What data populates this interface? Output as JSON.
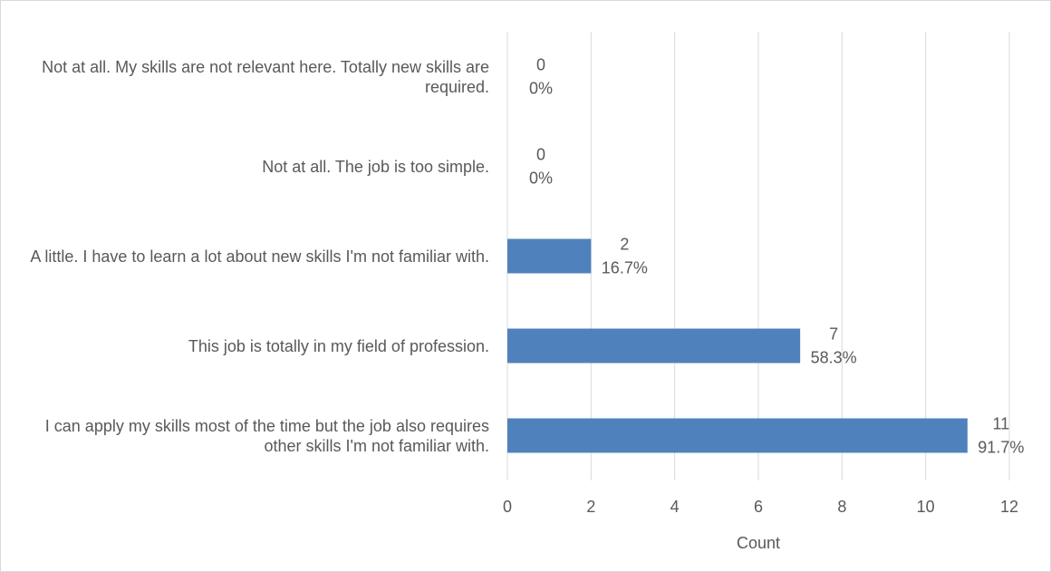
{
  "chart_data": {
    "type": "barh",
    "categories": [
      "Not at all. My skills are not relevant here. Totally new skills are required.",
      "Not at all. The job is too simple.",
      "A little. I have to learn a lot about new skills I'm not familiar with.",
      "This job is totally in my field of profession.",
      "I can apply my skills most of the time but the job also requires other skills I'm not familiar with."
    ],
    "values": [
      0,
      0,
      2,
      7,
      11
    ],
    "percent_labels": [
      "0%",
      "0%",
      "16.7%",
      "58.3%",
      "91.7%"
    ],
    "color": "#4f81bd",
    "xlabel": "Count",
    "xlim": [
      0,
      12
    ],
    "xticks": [
      0,
      2,
      4,
      6,
      8,
      10,
      12
    ],
    "grid": true
  }
}
